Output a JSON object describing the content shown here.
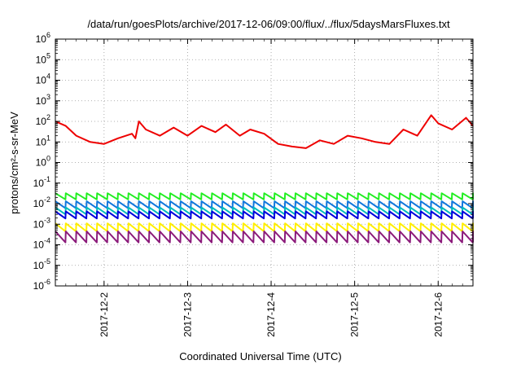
{
  "chart_data": {
    "type": "line",
    "title": "/data/run/goesPlots/archive/2017-12-06/09:00/flux/../flux/5daysMarsFluxes.txt",
    "xlabel": "Coordinated Universal Time (UTC)",
    "ylabel": "protons/cm²-s-sr-MeV",
    "y_scale": "log",
    "ylim": [
      1e-06,
      1000000.0
    ],
    "xlim": [
      "2017-12-01T10:00",
      "2017-12-06T10:00"
    ],
    "x_tick_labels": [
      "2017-12-2",
      "2017-12-3",
      "2017-12-4",
      "2017-12-5",
      "2017-12-6"
    ],
    "y_tick_labels": [
      {
        "base": "10",
        "exp": "-6"
      },
      {
        "base": "10",
        "exp": "-5"
      },
      {
        "base": "10",
        "exp": "-4"
      },
      {
        "base": "10",
        "exp": "-3"
      },
      {
        "base": "10",
        "exp": "-2"
      },
      {
        "base": "10",
        "exp": "-1"
      },
      {
        "base": "10",
        "exp": "0"
      },
      {
        "base": "10",
        "exp": "1"
      },
      {
        "base": "10",
        "exp": "2"
      },
      {
        "base": "10",
        "exp": "3"
      },
      {
        "base": "10",
        "exp": "4"
      },
      {
        "base": "10",
        "exp": "5"
      },
      {
        "base": "10",
        "exp": "6"
      }
    ],
    "grid": true,
    "legend": "none",
    "series": [
      {
        "color": "#ee0000",
        "width": 2,
        "x": [
          "2017-12-01T10:00",
          "2017-12-01T13:00",
          "2017-12-01T16:00",
          "2017-12-01T20:00",
          "2017-12-02T00:00",
          "2017-12-02T04:00",
          "2017-12-02T08:00",
          "2017-12-02T09:00",
          "2017-12-02T10:00",
          "2017-12-02T12:00",
          "2017-12-02T16:00",
          "2017-12-02T20:00",
          "2017-12-03T00:00",
          "2017-12-03T04:00",
          "2017-12-03T08:00",
          "2017-12-03T11:00",
          "2017-12-03T15:00",
          "2017-12-03T18:00",
          "2017-12-03T22:00",
          "2017-12-04T02:00",
          "2017-12-04T06:00",
          "2017-12-04T10:00",
          "2017-12-04T14:00",
          "2017-12-04T18:00",
          "2017-12-04T22:00",
          "2017-12-05T02:00",
          "2017-12-05T06:00",
          "2017-12-05T10:00",
          "2017-12-05T14:00",
          "2017-12-05T18:00",
          "2017-12-05T22:00",
          "2017-12-06T00:00",
          "2017-12-06T04:00",
          "2017-12-06T08:00",
          "2017-12-06T10:00"
        ],
        "y": [
          100,
          60,
          20,
          10,
          8,
          15,
          25,
          15,
          100,
          40,
          20,
          50,
          20,
          60,
          30,
          70,
          20,
          40,
          25,
          8,
          6,
          5,
          12,
          8,
          20,
          15,
          10,
          8,
          40,
          20,
          200,
          80,
          40,
          150,
          60
        ]
      },
      {
        "color": "#22ee22",
        "width": 2,
        "sawtooth": true,
        "peak": 0.032,
        "trough": 0.016
      },
      {
        "color": "#1077dd",
        "width": 2,
        "sawtooth": true,
        "peak": 0.013,
        "trough": 0.006
      },
      {
        "color": "#00bbbb",
        "width": 2,
        "sawtooth": true,
        "peak": 0.0065,
        "trough": 0.003
      },
      {
        "color": "#0000dd",
        "width": 2,
        "sawtooth": true,
        "peak": 0.0042,
        "trough": 0.0019
      },
      {
        "color": "#ffee00",
        "width": 2,
        "sawtooth": true,
        "peak": 0.0011,
        "trough": 0.00045
      },
      {
        "color": "#8b1a7a",
        "width": 2,
        "sawtooth": true,
        "peak": 0.00045,
        "trough": 0.00013
      }
    ]
  }
}
